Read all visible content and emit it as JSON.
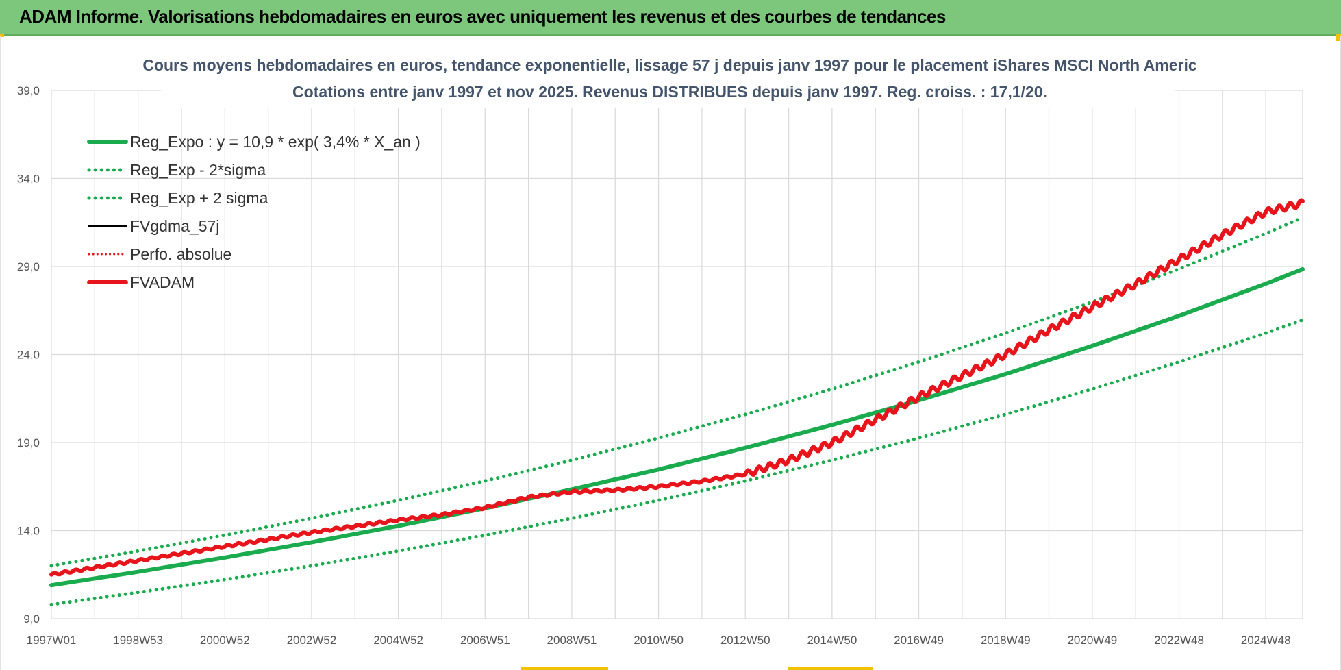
{
  "header": {
    "title": "ADAM Informe. Valorisations hebdomadaires en euros avec uniquement les revenus et des courbes de tendances"
  },
  "colors": {
    "header_bg": "#7cc77b",
    "green": "#1aab4f",
    "red": "#e8141b",
    "black": "#000000",
    "grid": "#d9d9d9",
    "title": "#44546a"
  },
  "chart_data": {
    "type": "line",
    "title": "Cours moyens hebdomadaires en euros, tendance exponentielle, lissage 57 j depuis janv 1997 pour le placement iShares MSCI North Americ",
    "subtitle": "Cotations entre janv 1997 et nov 2025. Revenus DISTRIBUES depuis janv 1997. Reg. croiss. : 17,1/20.",
    "xlabel": "",
    "ylabel": "",
    "xlim": [
      1997.0,
      2025.85
    ],
    "ylim": [
      9.0,
      39.0
    ],
    "y_ticks": [
      "9,0",
      "14,0",
      "19,0",
      "24,0",
      "29,0",
      "34,0",
      "39,0"
    ],
    "y_tick_values": [
      9,
      14,
      19,
      24,
      29,
      34,
      39
    ],
    "x_ticks": [
      "1997W01",
      "1998W53",
      "2000W52",
      "2002W52",
      "2004W52",
      "2006W51",
      "2008W51",
      "2010W50",
      "2012W50",
      "2014W50",
      "2016W49",
      "2018W49",
      "2020W49",
      "2022W48",
      "2024W48"
    ],
    "x_tick_values": [
      1997.0,
      1999.0,
      2001.0,
      2003.0,
      2005.0,
      2007.0,
      2009.0,
      2011.0,
      2013.0,
      2015.0,
      2017.0,
      2019.0,
      2021.0,
      2023.0,
      2025.0
    ],
    "grid": true,
    "legend_position": "top-left",
    "series": [
      {
        "name": "Reg_Expo : y = 10,9 * exp( 3,4% *  X_an )",
        "style": "solid",
        "color": "#1aab4f",
        "width": 6,
        "x": [
          1997.0,
          1999.0,
          2001.0,
          2003.0,
          2005.0,
          2007.0,
          2009.0,
          2011.0,
          2013.0,
          2015.0,
          2017.0,
          2019.0,
          2021.0,
          2023.0,
          2025.0,
          2025.85
        ],
        "values": [
          10.9,
          11.66,
          12.47,
          13.34,
          14.27,
          15.27,
          16.34,
          17.47,
          18.7,
          20.0,
          21.4,
          22.89,
          24.49,
          26.2,
          28.02,
          28.85
        ]
      },
      {
        "name": "Reg_Exp - 2*sigma",
        "style": "dotted",
        "color": "#1aab4f",
        "width": 5,
        "x": [
          1997.0,
          1999.0,
          2001.0,
          2003.0,
          2005.0,
          2007.0,
          2009.0,
          2011.0,
          2013.0,
          2015.0,
          2017.0,
          2019.0,
          2021.0,
          2023.0,
          2025.0,
          2025.85
        ],
        "values": [
          9.8,
          10.49,
          11.22,
          12.0,
          12.84,
          13.74,
          14.7,
          15.72,
          16.82,
          18.0,
          19.26,
          20.6,
          22.04,
          23.58,
          25.22,
          25.96
        ]
      },
      {
        "name": "Reg_Exp + 2 sigma",
        "style": "dotted",
        "color": "#1aab4f",
        "width": 5,
        "x": [
          1997.0,
          1999.0,
          2001.0,
          2003.0,
          2005.0,
          2007.0,
          2009.0,
          2011.0,
          2013.0,
          2015.0,
          2017.0,
          2019.0,
          2021.0,
          2023.0,
          2025.0,
          2025.85
        ],
        "values": [
          12.0,
          12.84,
          13.74,
          14.7,
          15.72,
          16.82,
          18.0,
          19.26,
          20.6,
          22.04,
          23.58,
          25.22,
          26.98,
          28.86,
          30.87,
          31.78
        ]
      },
      {
        "name": "FVgdma_57j",
        "style": "solid",
        "color": "#000000",
        "width": 3,
        "x": [],
        "values": []
      },
      {
        "name": "Perfo. absolue",
        "style": "dotted",
        "color": "#e8141b",
        "width": 3,
        "x": [],
        "values": []
      },
      {
        "name": "FVADAM",
        "style": "solid",
        "color": "#e8141b",
        "width": 6,
        "x": [
          1997.0,
          1999.0,
          2001.0,
          2003.0,
          2005.0,
          2006.0,
          2007.0,
          2008.0,
          2009.0,
          2010.0,
          2011.0,
          2012.0,
          2013.0,
          2014.0,
          2015.0,
          2016.0,
          2017.0,
          2018.0,
          2019.0,
          2020.0,
          2021.0,
          2022.0,
          2023.0,
          2024.0,
          2025.0,
          2025.85
        ],
        "values": [
          11.5,
          12.3,
          13.1,
          13.9,
          14.6,
          14.9,
          15.3,
          15.9,
          16.2,
          16.3,
          16.5,
          16.8,
          17.2,
          18.0,
          19.0,
          20.3,
          21.6,
          22.8,
          24.0,
          25.4,
          26.7,
          28.0,
          29.4,
          30.8,
          32.1,
          32.6
        ]
      }
    ]
  }
}
